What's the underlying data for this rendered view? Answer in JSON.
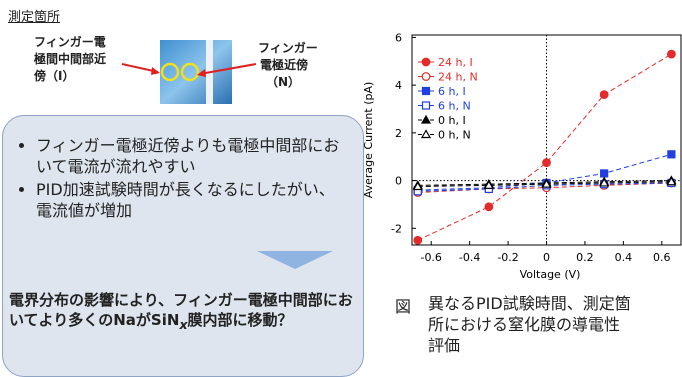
{
  "heading": "測定箇所",
  "left_label": [
    "フィンガー電",
    "極間中間部近",
    "傍（I）"
  ],
  "right_label": [
    "フィンガー",
    "電極近傍",
    "（N）"
  ],
  "bullets": [
    "フィンガー電極近傍よりも電極中間部において電流が流れやすい",
    "PID加速試験時間が長くなるにしたがい、電流値が増加"
  ],
  "conclusion": {
    "before": "電界分布の影響により、フィンガー電極中間部においてより多くのNaがSiN",
    "subscript": "x",
    "after": "膜内部に移動？"
  },
  "caption": {
    "prefix": "図",
    "lines": [
      "異なるPID試験時間、測定箇",
      "所における窒化膜の導電性",
      "評価"
    ]
  },
  "chart_data": {
    "type": "line",
    "x_label": "Voltage (V)",
    "y_label": "Average Current (pA)",
    "x": [
      -0.67,
      -0.3,
      0,
      0.3,
      0.65
    ],
    "series": [
      {
        "name": "24 h, I",
        "color": "#e32b2b",
        "marker": "circle",
        "filled": true,
        "values": [
          -2.5,
          -1.1,
          0.75,
          3.6,
          5.3
        ]
      },
      {
        "name": "24 h, N",
        "color": "#e32b2b",
        "marker": "circle",
        "filled": false,
        "values": [
          -0.5,
          -0.35,
          -0.3,
          -0.2,
          -0.1
        ]
      },
      {
        "name": "6 h, I",
        "color": "#1f3fe0",
        "marker": "square",
        "filled": true,
        "values": [
          -0.4,
          -0.3,
          -0.1,
          0.3,
          1.1
        ]
      },
      {
        "name": "6 h, N",
        "color": "#1f3fe0",
        "marker": "square",
        "filled": false,
        "values": [
          -0.45,
          -0.35,
          -0.2,
          -0.15,
          -0.1
        ]
      },
      {
        "name": "0 h, I",
        "color": "#000000",
        "marker": "triangle",
        "filled": true,
        "values": [
          -0.2,
          -0.15,
          -0.1,
          -0.05,
          0
        ]
      },
      {
        "name": "0 h, N",
        "color": "#000000",
        "marker": "triangle",
        "filled": false,
        "values": [
          -0.25,
          -0.2,
          -0.15,
          -0.1,
          -0.05
        ]
      }
    ],
    "xlim": [
      -0.7,
      0.7
    ],
    "ylim": [
      -2.7,
      6.1
    ],
    "xticks": [
      -0.6,
      -0.4,
      -0.2,
      0,
      0.2,
      0.4,
      0.6
    ],
    "yticks": [
      -2,
      0,
      2,
      4,
      6
    ]
  }
}
